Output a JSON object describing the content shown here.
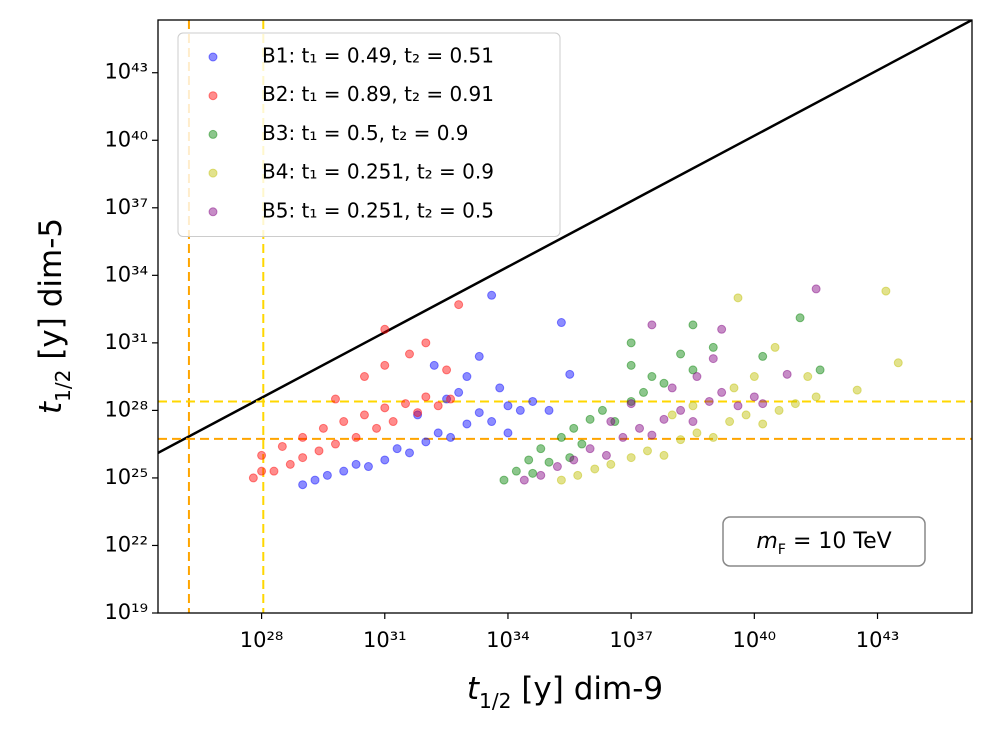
{
  "chart_data": {
    "type": "scatter",
    "x_label": "t1/2 [y] dim-9",
    "y_label": "t1/2 [y] dim-5",
    "annotation": "mF = 10 TeV",
    "log_x": true,
    "log_y": true,
    "grid": false,
    "legend": "upper left",
    "xlim": [
      3e+25,
      2e+45
    ],
    "ylim": [
      1e+19,
      2.2e+45
    ],
    "xticks": [
      {
        "value": 1e+28,
        "label": "10²⁸"
      },
      {
        "value": 1e+31,
        "label": "10³¹"
      },
      {
        "value": 1e+34,
        "label": "10³⁴"
      },
      {
        "value": 1e+37,
        "label": "10³⁷"
      },
      {
        "value": 1e+40,
        "label": "10⁴⁰"
      },
      {
        "value": 1e+43,
        "label": "10⁴³"
      }
    ],
    "yticks": [
      {
        "value": 1e+19,
        "label": "10¹⁹"
      },
      {
        "value": 1e+22,
        "label": "10²²"
      },
      {
        "value": 1e+25,
        "label": "10²⁵"
      },
      {
        "value": 1e+28,
        "label": "10²⁸"
      },
      {
        "value": 1e+31,
        "label": "10³¹"
      },
      {
        "value": 1e+34,
        "label": "10³⁴"
      },
      {
        "value": 1e+37,
        "label": "10³⁷"
      },
      {
        "value": 1e+40,
        "label": "10⁴⁰"
      },
      {
        "value": 1e+43,
        "label": "10⁴³"
      }
    ],
    "reference_lines": [
      {
        "color": "#000000",
        "dash": false,
        "x": [
          3e+25,
          2e+45
        ],
        "y": [
          1.3e+26,
          2.2e+45
        ]
      },
      {
        "color": "#ffa500",
        "dash": true,
        "orientation": "vertical",
        "value": 1.7e+26
      },
      {
        "color": "#ffd700",
        "dash": true,
        "orientation": "vertical",
        "value": 1.1e+28
      },
      {
        "color": "#ffd700",
        "dash": true,
        "orientation": "horizontal",
        "value": 2.5e+28
      },
      {
        "color": "#ffa500",
        "dash": true,
        "orientation": "horizontal",
        "value": 5.4e+26
      }
    ],
    "series": [
      {
        "name": "B1: t₁ = 0.49, t₂ = 0.51",
        "color": "#0000ff",
        "x": [
          1e+29,
          2e+29,
          4e+29,
          1e+30,
          2e+30,
          4e+30,
          1e+31,
          2e+31,
          4e+31,
          1e+32,
          2e+32,
          4e+32,
          1e+33,
          2e+33,
          4e+33,
          1e+34,
          2e+34,
          4e+34,
          1e+35,
          3.2e+32,
          1e+33,
          1.6e+32,
          2e+33,
          4e+33,
          2e+35,
          3.2e+35,
          1e+34,
          6.3e+31,
          6.3e+32,
          6.3e+33
        ],
        "values": [
          5e+24,
          8e+24,
          1.3e+25,
          2e+25,
          4e+25,
          3.2e+25,
          6.3e+25,
          2e+26,
          1.3e+26,
          4e+26,
          1e+27,
          6.3e+26,
          2.5e+27,
          8e+27,
          3.2e+27,
          1.6e+28,
          1e+28,
          2.5e+28,
          1e+28,
          3.2e+28,
          3.2e+29,
          1e+30,
          2.5e+30,
          1.3e+33,
          8e+31,
          4e+29,
          1e+27,
          6.3e+27,
          6.3e+28,
          1e+29
        ]
      },
      {
        "name": "B2: t₁ = 0.89, t₂ = 0.91",
        "color": "#ff0000",
        "x": [
          6.3e+27,
          1e+28,
          1e+28,
          2e+28,
          3.2e+28,
          5e+28,
          1e+29,
          1e+29,
          2.5e+29,
          3.2e+29,
          6.3e+29,
          1e+30,
          2e+30,
          3.2e+30,
          6.3e+30,
          1e+31,
          1.6e+31,
          3.2e+31,
          6.3e+31,
          1e+32,
          2e+32,
          4e+32,
          3.2e+30,
          1e+31,
          1e+31,
          4e+31,
          1e+32,
          6.3e+32,
          6.3e+29,
          3.2e+32
        ],
        "values": [
          1e+25,
          2e+25,
          1e+26,
          2e+25,
          2.5e+26,
          4e+25,
          6.3e+26,
          8e+25,
          1.6e+26,
          1.6e+27,
          3.2e+26,
          3.2e+27,
          6.3e+26,
          6.3e+27,
          1.6e+27,
          1.3e+28,
          3.2e+27,
          2e+28,
          8e+27,
          4e+28,
          1.6e+28,
          3.2e+28,
          3.2e+29,
          1e+30,
          4e+31,
          3.2e+30,
          1e+31,
          5e+32,
          3.2e+28,
          6.3e+29
        ]
      },
      {
        "name": "B3: t₁ = 0.5, t₂ = 0.9",
        "color": "#008000",
        "x": [
          8e+33,
          1.6e+34,
          3.2e+34,
          6.3e+34,
          1e+35,
          2e+35,
          4e+35,
          6.3e+35,
          1e+36,
          2e+36,
          4e+36,
          1e+37,
          2e+37,
          3.2e+37,
          1e+37,
          6.3e+37,
          1.6e+38,
          3.2e+38,
          1e+39,
          1e+37,
          1.6e+40,
          1.3e+41,
          4e+41,
          3.2e+38,
          4e+34,
          3.2e+35
        ],
        "values": [
          8e+24,
          2e+25,
          6.3e+25,
          2e+26,
          5e+25,
          6.3e+26,
          1.6e+27,
          3.2e+26,
          4e+27,
          1e+28,
          3.2e+27,
          2.5e+28,
          6.3e+28,
          3.2e+29,
          1e+30,
          1.6e+29,
          3.2e+30,
          6.3e+29,
          6.3e+30,
          1e+31,
          2.5e+30,
          1.3e+32,
          6.3e+29,
          6.3e+31,
          1.6e+25,
          8e+25
        ]
      },
      {
        "name": "B4: t₁ = 0.251, t₂ = 0.9",
        "color": "#bfbf00",
        "x": [
          2e+35,
          5e+35,
          1.3e+36,
          3.2e+36,
          1e+37,
          2.5e+37,
          6.3e+37,
          1.6e+38,
          4e+38,
          1e+39,
          2.5e+39,
          6.3e+39,
          1.6e+40,
          4e+40,
          1e+41,
          3.2e+38,
          3.2e+39,
          1e+40,
          4e+39,
          1.6e+43,
          3.2e+43,
          3.2e+42,
          2e+41,
          3.2e+40,
          1e+38,
          3.2e+41
        ],
        "values": [
          8e+24,
          1.3e+25,
          2.5e+25,
          4e+25,
          8e+25,
          1.6e+26,
          1e+26,
          5e+26,
          1e+27,
          6.3e+26,
          3.2e+27,
          6.3e+27,
          2.5e+27,
          1e+28,
          2e+28,
          1.6e+28,
          1e+29,
          3.2e+29,
          1e+33,
          2e+33,
          1.3e+30,
          8e+28,
          3.2e+29,
          6.3e+30,
          6.3e+27,
          4e+28
        ]
      },
      {
        "name": "B5: t₁ = 0.251, t₂ = 0.5",
        "color": "#800080",
        "x": [
          2.5e+34,
          6.3e+34,
          1.6e+35,
          4e+35,
          1e+36,
          2.5e+36,
          6.3e+36,
          1.6e+37,
          3.2e+37,
          6.3e+37,
          1.6e+38,
          3.2e+38,
          8e+38,
          1.6e+39,
          4e+39,
          1e+40,
          1.6e+40,
          1e+37,
          1e+38,
          4e+38,
          1e+39,
          3.2e+37,
          1.6e+39,
          6.3e+40,
          3.2e+41,
          3.2e+36
        ],
        "values": [
          8e+24,
          1.3e+25,
          3.2e+25,
          6.3e+25,
          2e+26,
          1e+26,
          6.3e+26,
          1.6e+27,
          8e+26,
          4e+27,
          1e+28,
          3.2e+27,
          2.5e+28,
          6.3e+28,
          1.6e+28,
          4e+28,
          2e+28,
          2e+28,
          1e+29,
          3.2e+29,
          2e+30,
          6.3e+31,
          4e+31,
          4e+29,
          2.5e+33,
          3.2e+27
        ]
      }
    ]
  }
}
